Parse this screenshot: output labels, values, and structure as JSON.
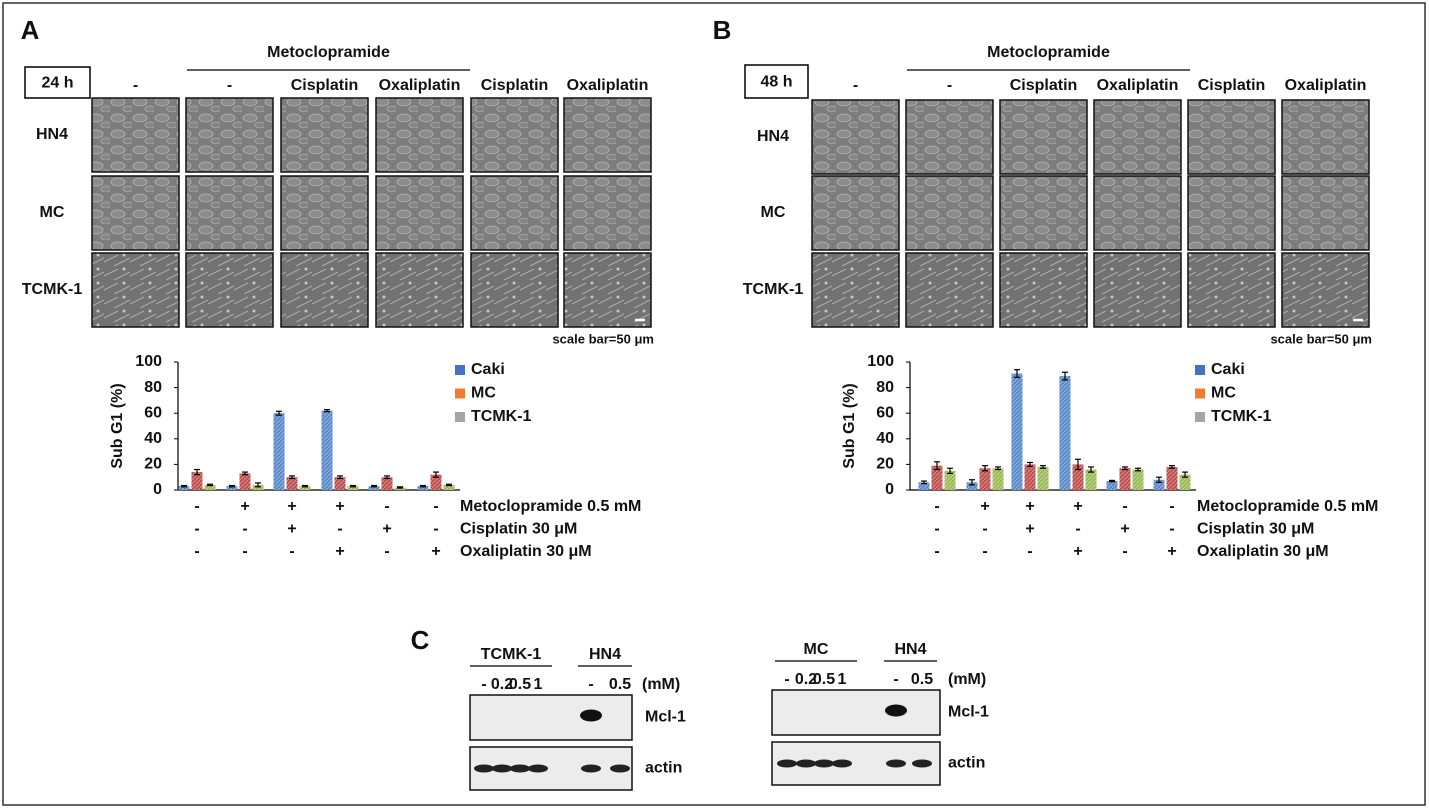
{
  "panels": [
    {
      "label": "A",
      "time": "24 h",
      "treatment_header": "Metoclopramide",
      "columns": [
        "-",
        "-",
        "Cisplatin",
        "Oxaliplatin",
        "Cisplatin",
        "Oxaliplatin"
      ],
      "rows": [
        "HN4",
        "MC",
        "TCMK-1"
      ],
      "scale_bar": "scale bar=50 μm"
    },
    {
      "label": "B",
      "time": "48 h",
      "treatment_header": "Metoclopramide",
      "columns": [
        "-",
        "-",
        "Cisplatin",
        "Oxaliplatin",
        "Cisplatin",
        "Oxaliplatin"
      ],
      "rows": [
        "HN4",
        "MC",
        "TCMK-1"
      ],
      "scale_bar": "scale bar=50 μm"
    }
  ],
  "chart_data": [
    {
      "type": "bar",
      "ylabel": "Sub G1 (%)",
      "ylim": [
        0,
        100
      ],
      "yticks": [
        0,
        20,
        40,
        60,
        80,
        100
      ],
      "series": [
        {
          "name": "Caki",
          "color": "#5a8ac9",
          "legend_color": "#4472c4",
          "values": [
            3,
            3,
            60,
            62,
            3,
            3
          ],
          "errors": [
            0.5,
            0.5,
            1.5,
            0.8,
            0.5,
            0.5
          ]
        },
        {
          "name": "MC",
          "color": "#c0504d",
          "legend_color": "#ed7d31",
          "values": [
            14,
            13,
            10,
            10,
            10,
            12
          ],
          "errors": [
            2,
            1,
            1,
            1,
            1,
            2
          ]
        },
        {
          "name": "TCMK-1",
          "color": "#9bbb59",
          "legend_color": "#a5a5a5",
          "values": [
            4,
            4,
            3,
            3,
            2,
            4
          ],
          "errors": [
            0.5,
            1.5,
            0.5,
            0.5,
            0.5,
            0.5
          ]
        }
      ],
      "conditions": [
        {
          "label": "Metoclopramide 0.5 mM",
          "marks": [
            "-",
            "+",
            "+",
            "+",
            "-",
            "-"
          ]
        },
        {
          "label": "Cisplatin 30 μM",
          "marks": [
            "-",
            "-",
            "+",
            "-",
            "+",
            "-"
          ]
        },
        {
          "label": "Oxaliplatin 30 μM",
          "marks": [
            "-",
            "-",
            "-",
            "+",
            "-",
            "+"
          ]
        }
      ]
    },
    {
      "type": "bar",
      "ylabel": "Sub G1 (%)",
      "ylim": [
        0,
        100
      ],
      "yticks": [
        0,
        20,
        40,
        60,
        80,
        100
      ],
      "series": [
        {
          "name": "Caki",
          "color": "#5a8ac9",
          "legend_color": "#4472c4",
          "values": [
            6,
            6,
            91,
            89,
            7,
            8
          ],
          "errors": [
            1,
            2,
            3,
            3,
            0.5,
            2
          ]
        },
        {
          "name": "MC",
          "color": "#c0504d",
          "legend_color": "#ed7d31",
          "values": [
            19,
            17,
            20,
            20,
            17,
            18
          ],
          "errors": [
            3,
            2,
            1.5,
            4,
            1,
            1
          ]
        },
        {
          "name": "TCMK-1",
          "color": "#9bbb59",
          "legend_color": "#a5a5a5",
          "values": [
            15,
            17,
            18,
            16,
            16,
            12
          ],
          "errors": [
            2,
            1,
            1,
            2,
            1,
            2
          ]
        }
      ],
      "conditions": [
        {
          "label": "Metoclopramide 0.5 mM",
          "marks": [
            "-",
            "+",
            "+",
            "+",
            "-",
            "-"
          ]
        },
        {
          "label": "Cisplatin 30 μM",
          "marks": [
            "-",
            "-",
            "+",
            "-",
            "+",
            "-"
          ]
        },
        {
          "label": "Oxaliplatin 30 μM",
          "marks": [
            "-",
            "-",
            "-",
            "+",
            "-",
            "+"
          ]
        }
      ]
    }
  ],
  "panel_c": {
    "label": "C",
    "blots": [
      {
        "groups": [
          {
            "name": "TCMK-1",
            "lanes": [
              "-",
              "0.2",
              "0.5",
              "1"
            ]
          },
          {
            "name": "HN4",
            "lanes": [
              "-",
              "0.5"
            ]
          }
        ],
        "unit": "(mM)",
        "rows": [
          "Mcl-1",
          "actin"
        ]
      },
      {
        "groups": [
          {
            "name": "MC",
            "lanes": [
              "-",
              "0.2",
              "0.5",
              "1"
            ]
          },
          {
            "name": "HN4",
            "lanes": [
              "-",
              "0.5"
            ]
          }
        ],
        "unit": "(mM)",
        "rows": [
          "Mcl-1",
          "actin"
        ]
      }
    ]
  }
}
